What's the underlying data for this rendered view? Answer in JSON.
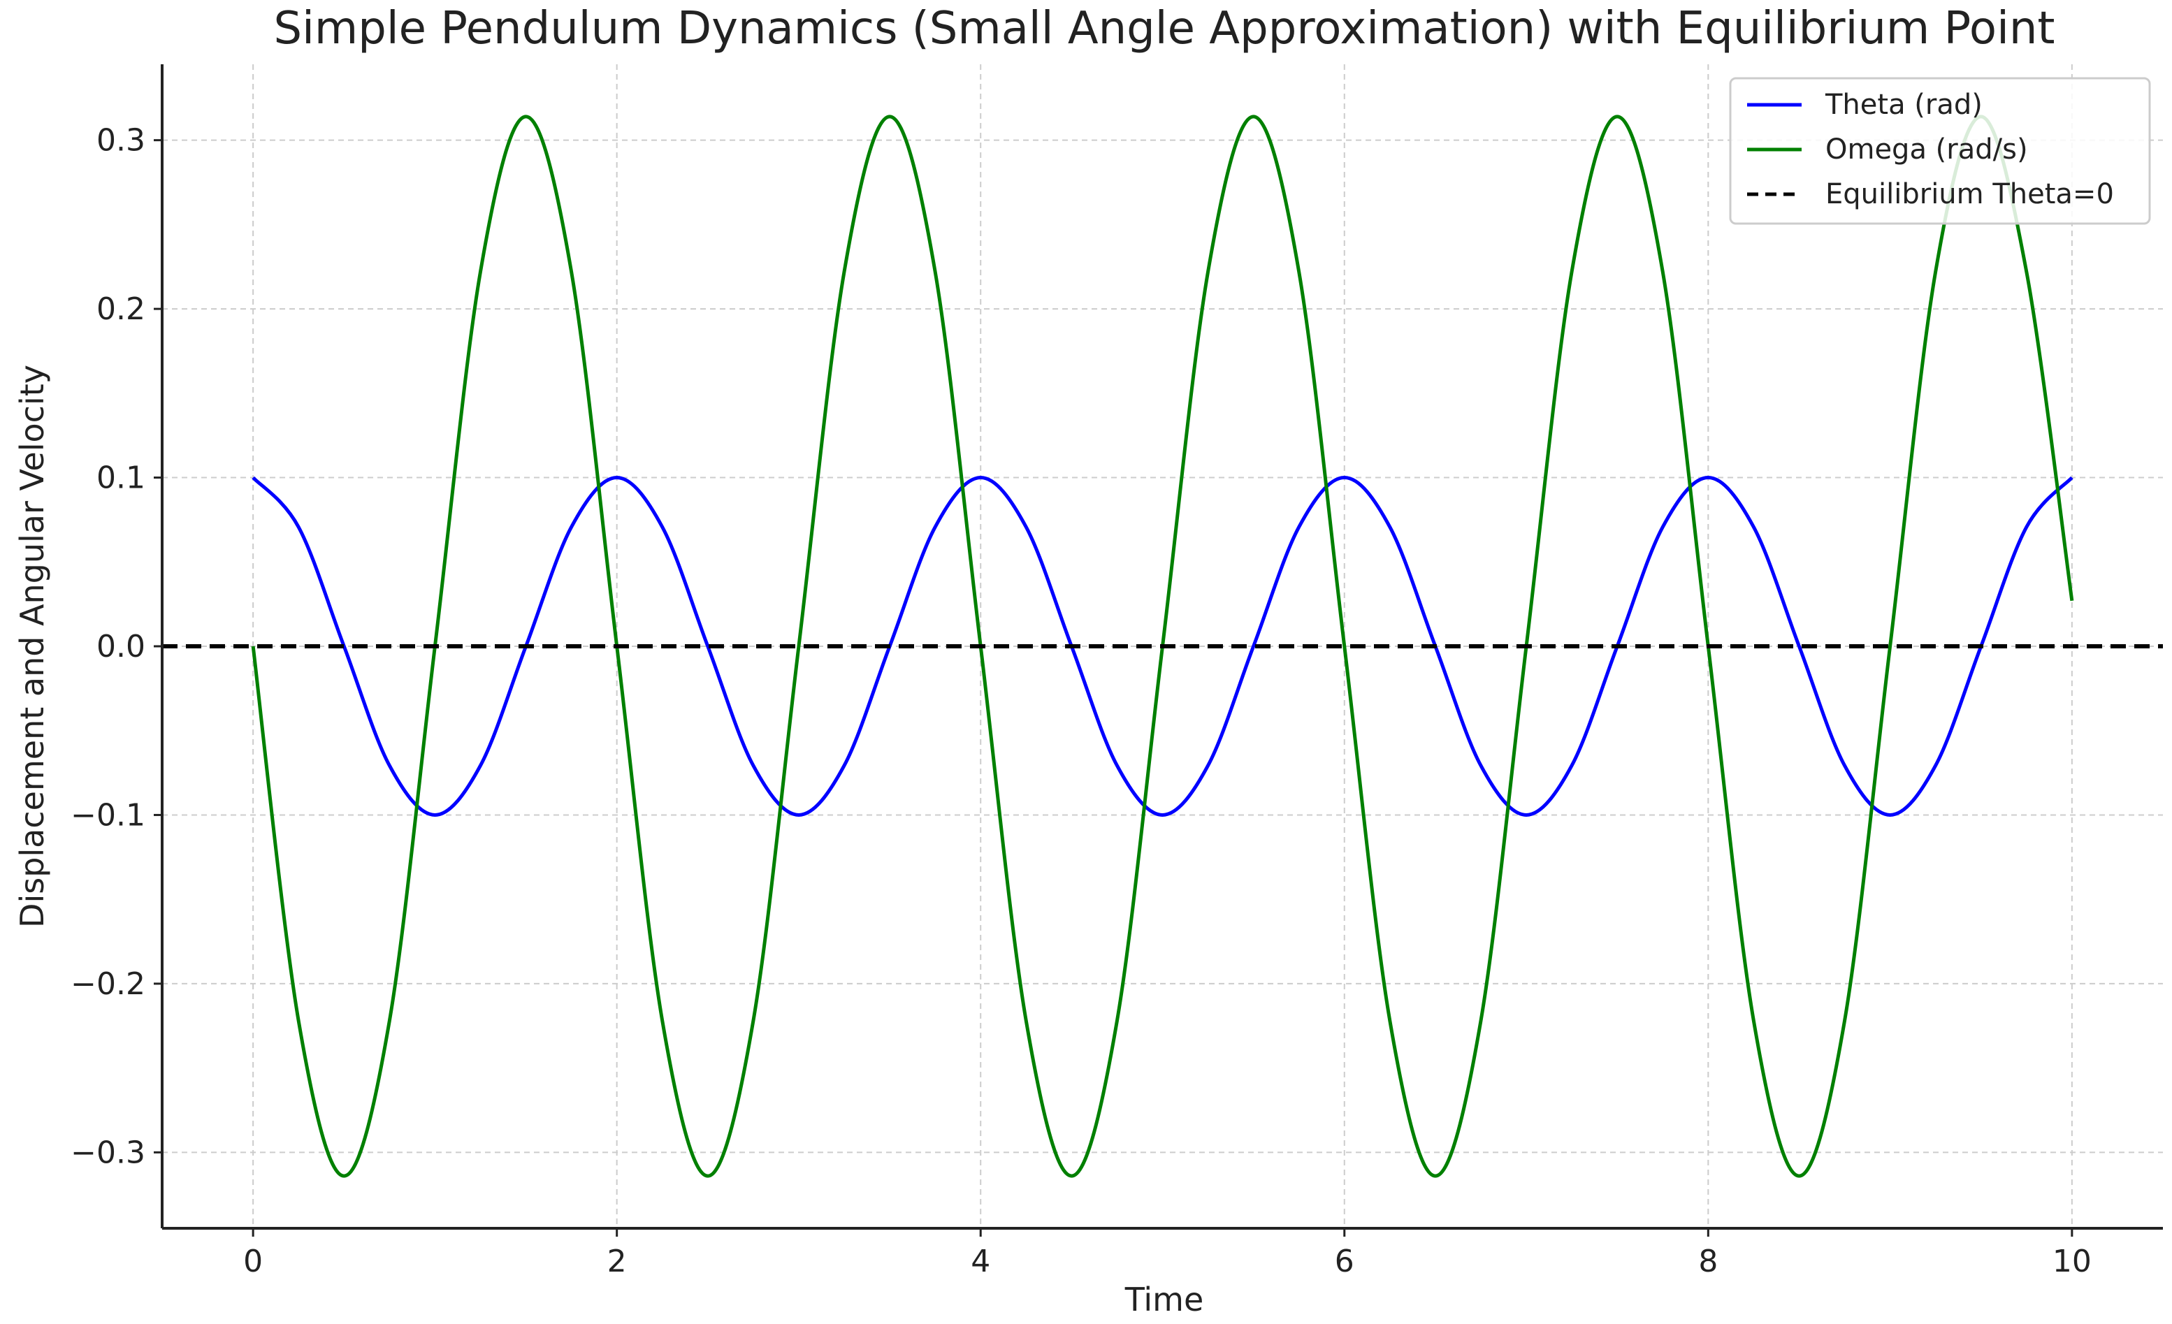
{
  "chart_data": {
    "type": "line",
    "title": "Simple Pendulum Dynamics (Small Angle Approximation) with Equilibrium Point",
    "xlabel": "Time",
    "ylabel": "Displacement and Angular Velocity",
    "xlim": [
      -0.5,
      10.5
    ],
    "ylim": [
      -0.345,
      0.345
    ],
    "x_ticks": [
      {
        "value": 0,
        "label": "0"
      },
      {
        "value": 2,
        "label": "2"
      },
      {
        "value": 4,
        "label": "4"
      },
      {
        "value": 6,
        "label": "6"
      },
      {
        "value": 8,
        "label": "8"
      },
      {
        "value": 10,
        "label": "10"
      }
    ],
    "y_ticks": [
      {
        "value": -0.3,
        "label": "−0.3"
      },
      {
        "value": -0.2,
        "label": "−0.2"
      },
      {
        "value": -0.1,
        "label": "−0.1"
      },
      {
        "value": 0.0,
        "label": "0.0"
      },
      {
        "value": 0.1,
        "label": "0.1"
      },
      {
        "value": 0.2,
        "label": "0.2"
      },
      {
        "value": 0.3,
        "label": "0.3"
      }
    ],
    "grid": true,
    "legend_position": "top-right",
    "series": [
      {
        "name": "Theta (rad)",
        "color": "#0000ff",
        "style": "solid",
        "x": [
          0,
          0.25,
          0.5,
          0.75,
          1,
          1.25,
          1.5,
          1.75,
          2,
          2.25,
          2.5,
          2.75,
          3,
          3.25,
          3.5,
          3.75,
          4,
          4.25,
          4.5,
          4.75,
          5,
          5.25,
          5.5,
          5.75,
          6,
          6.25,
          6.5,
          6.75,
          7,
          7.25,
          7.5,
          7.75,
          8,
          8.25,
          8.5,
          8.75,
          9,
          9.25,
          9.5,
          9.75,
          10
        ],
        "values": [
          0.1,
          0.0707,
          0.0,
          -0.0707,
          -0.1,
          -0.0707,
          0.0,
          0.0707,
          0.1,
          0.0707,
          0.0,
          -0.0707,
          -0.1,
          -0.0707,
          0.0,
          0.0707,
          0.1,
          0.0707,
          0.0,
          -0.0707,
          -0.1,
          -0.0707,
          0.0,
          0.0707,
          0.1,
          0.0707,
          0.0,
          -0.0707,
          -0.1,
          -0.0707,
          0.0,
          0.0707,
          0.1,
          0.0707,
          0.0,
          -0.0707,
          -0.1,
          -0.0707,
          0.0,
          0.0707,
          0.1
        ]
      },
      {
        "name": "Omega (rad/s)",
        "color": "#008000",
        "style": "solid",
        "x": [
          0,
          0.25,
          0.5,
          0.75,
          1,
          1.25,
          1.5,
          1.75,
          2,
          2.25,
          2.5,
          2.75,
          3,
          3.25,
          3.5,
          3.75,
          4,
          4.25,
          4.5,
          4.75,
          5,
          5.25,
          5.5,
          5.75,
          6,
          6.25,
          6.5,
          6.75,
          7,
          7.25,
          7.5,
          7.75,
          8,
          8.25,
          8.5,
          8.75,
          9,
          9.25,
          9.5,
          9.75,
          10
        ],
        "values": [
          0.0,
          -0.222,
          -0.314,
          -0.222,
          0.0,
          0.222,
          0.314,
          0.222,
          0.0,
          -0.222,
          -0.314,
          -0.222,
          0.0,
          0.222,
          0.314,
          0.222,
          0.0,
          -0.222,
          -0.314,
          -0.222,
          0.0,
          0.222,
          0.314,
          0.222,
          0.0,
          -0.222,
          -0.314,
          -0.222,
          0.0,
          0.222,
          0.314,
          0.222,
          0.0,
          -0.222,
          -0.314,
          -0.222,
          0.0,
          0.222,
          0.314,
          0.222,
          0.027
        ]
      },
      {
        "name": "Equilibrium Theta=0",
        "color": "#000000",
        "style": "dashed",
        "y_constant": 0.0
      }
    ]
  }
}
